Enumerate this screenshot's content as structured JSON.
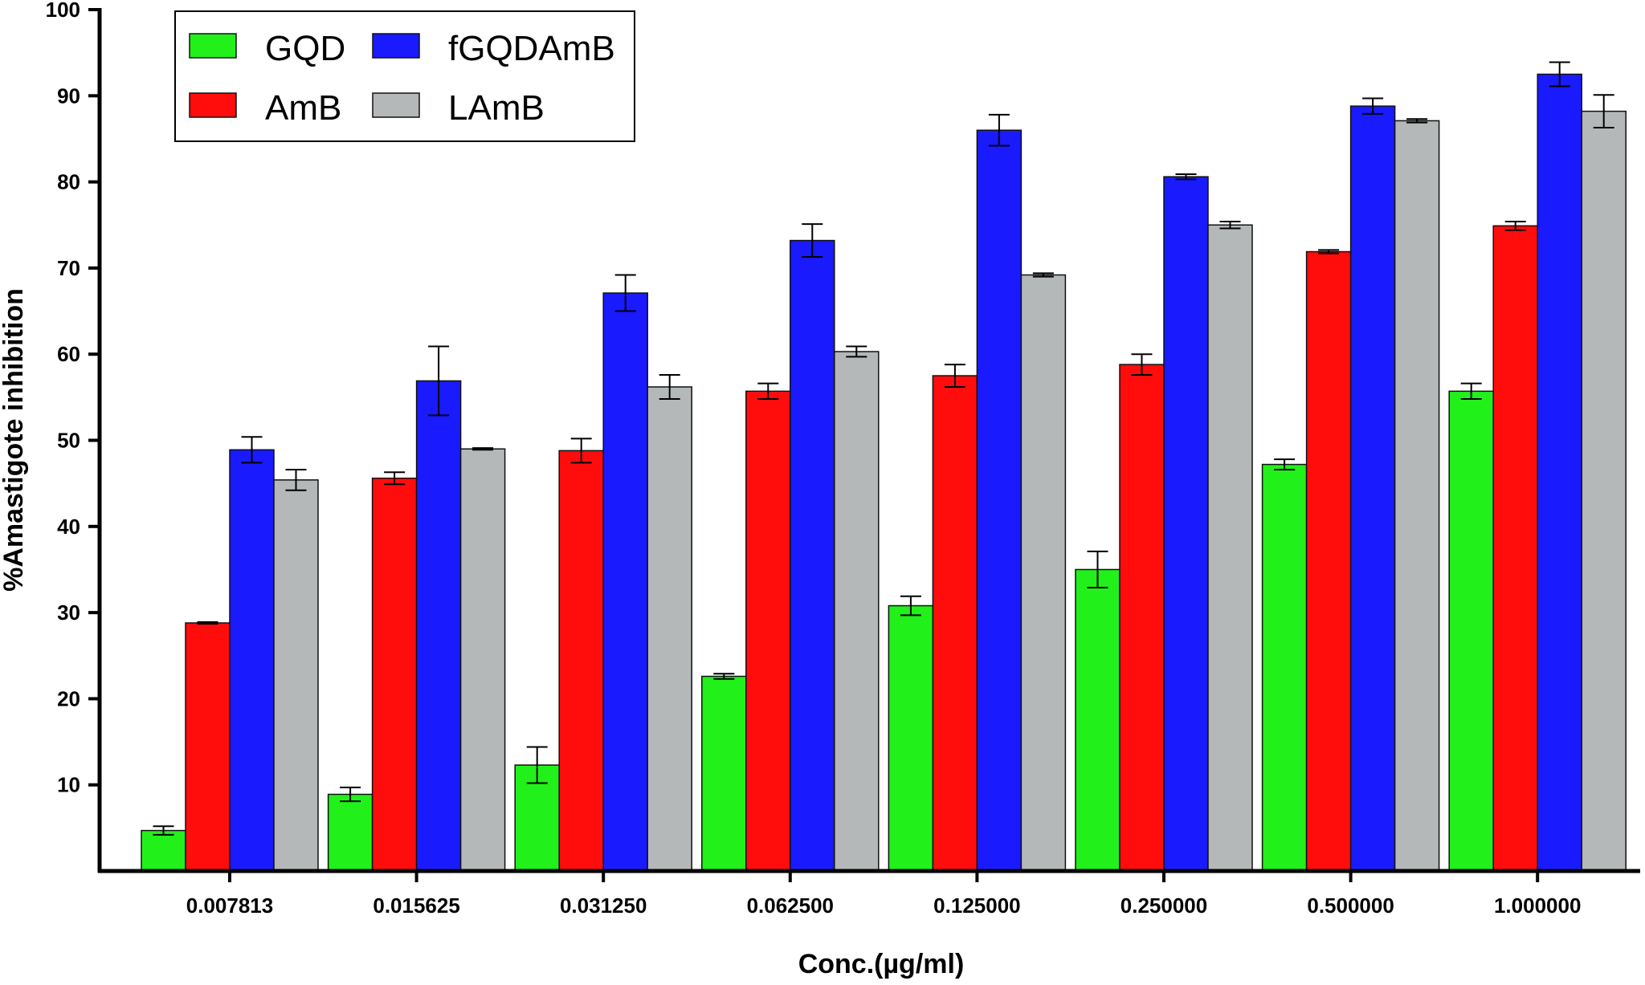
{
  "chart_data": {
    "type": "bar",
    "title": "",
    "xlabel": "Conc.(µg/ml)",
    "ylabel": "%Amastigote inhibition",
    "ylim": [
      0,
      100
    ],
    "yticks": [
      10,
      20,
      30,
      40,
      50,
      60,
      70,
      80,
      90,
      100
    ],
    "grid": false,
    "legend_position": "top-left",
    "categories": [
      "0.007813",
      "0.015625",
      "0.031250",
      "0.062500",
      "0.125000",
      "0.250000",
      "0.500000",
      "1.000000"
    ],
    "series": [
      {
        "name": "GQD",
        "color": "#22f01a",
        "values": [
          4.7,
          8.9,
          12.3,
          22.6,
          30.8,
          35.0,
          47.2,
          55.7
        ],
        "errors": [
          0.5,
          0.8,
          2.1,
          0.3,
          1.1,
          2.1,
          0.6,
          0.9
        ]
      },
      {
        "name": "AmB",
        "color": "#ff0d0d",
        "values": [
          28.8,
          45.6,
          48.8,
          55.7,
          57.5,
          58.8,
          71.9,
          74.9
        ],
        "errors": [
          0.1,
          0.7,
          1.4,
          0.9,
          1.3,
          1.2,
          0.2,
          0.5
        ]
      },
      {
        "name": "fGQDAmB",
        "color": "#1a1aff",
        "values": [
          48.9,
          56.9,
          67.1,
          73.2,
          86.0,
          80.6,
          88.8,
          92.5
        ],
        "errors": [
          1.5,
          4.0,
          2.1,
          1.9,
          1.8,
          0.3,
          0.9,
          1.4
        ]
      },
      {
        "name": "LAmB",
        "color": "#b4b8b8",
        "values": [
          45.4,
          49.0,
          56.2,
          60.3,
          69.2,
          75.0,
          87.1,
          88.2
        ],
        "errors": [
          1.2,
          0.1,
          1.4,
          0.6,
          0.2,
          0.4,
          0.2,
          1.9
        ]
      }
    ]
  }
}
